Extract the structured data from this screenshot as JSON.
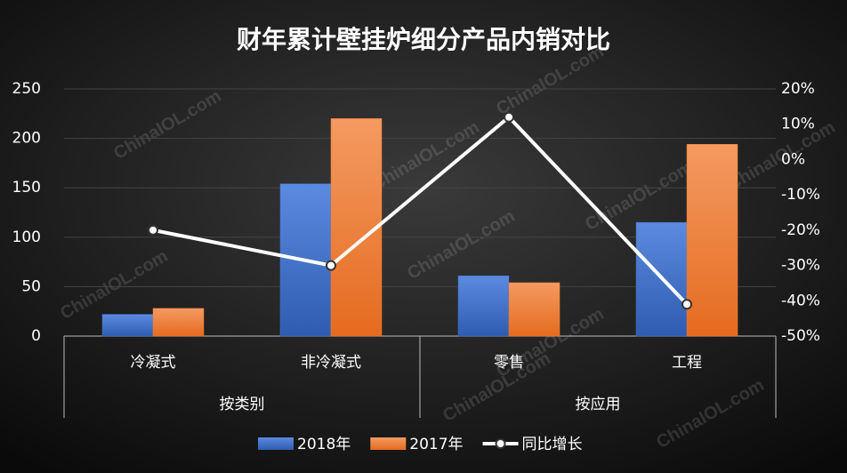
{
  "chart_data": {
    "type": "bar",
    "title": "财年累计壁挂炉细分产品内销对比",
    "watermark": "ChinaIOL.com",
    "categories": [
      "冷凝式",
      "非冷凝式",
      "零售",
      "工程"
    ],
    "groups": [
      "按类别",
      "按应用"
    ],
    "series": [
      {
        "name": "2018年",
        "type": "bar",
        "color": "#4472c4",
        "values": [
          22,
          154,
          61,
          115
        ]
      },
      {
        "name": "2017年",
        "type": "bar",
        "color": "#ed7d31",
        "values": [
          28,
          220,
          54,
          194
        ]
      },
      {
        "name": "同比增长",
        "type": "line",
        "axis": "y2",
        "color": "#ffffff",
        "values": [
          -20,
          -30,
          12,
          -41
        ]
      }
    ],
    "ylim": [
      0,
      250
    ],
    "yticks": [
      0,
      50,
      100,
      150,
      200,
      250
    ],
    "y2lim": [
      -50,
      20
    ],
    "y2ticks": [
      {
        "value": -50,
        "label": "-50%"
      },
      {
        "value": -40,
        "label": "-40%"
      },
      {
        "value": -30,
        "label": "-30%"
      },
      {
        "value": -20,
        "label": "-20%"
      },
      {
        "value": -10,
        "label": "-10%"
      },
      {
        "value": 0,
        "label": "0%"
      },
      {
        "value": 10,
        "label": "10%"
      },
      {
        "value": 20,
        "label": "20%"
      }
    ],
    "grid": true,
    "legend": "bottom"
  }
}
